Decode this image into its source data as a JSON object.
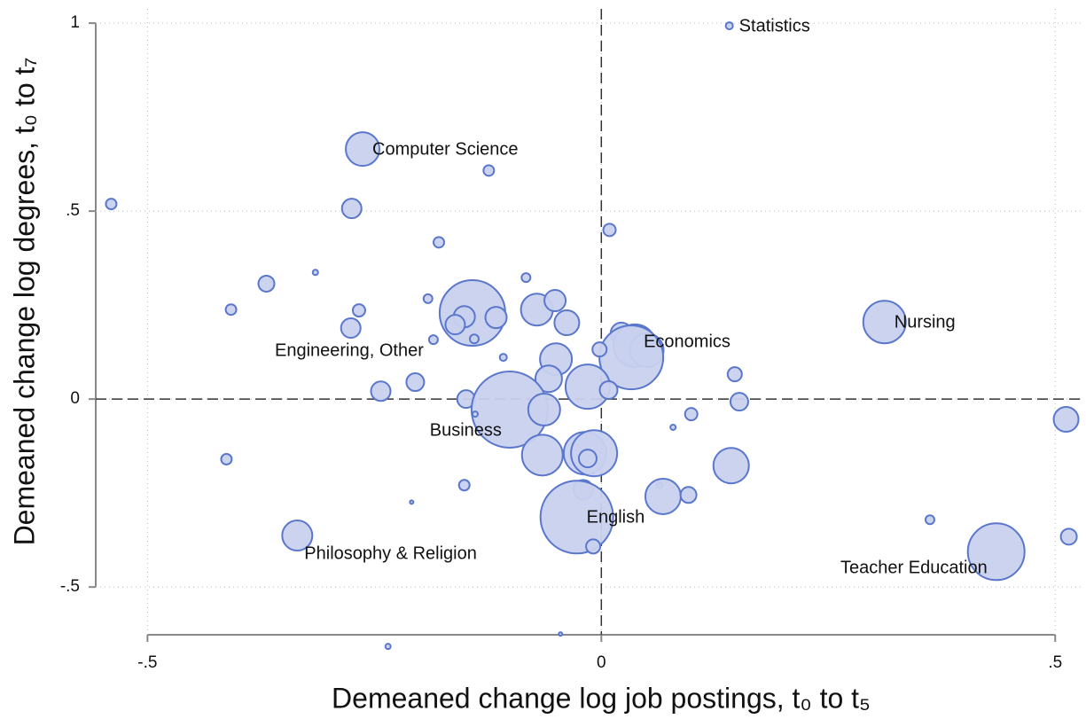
{
  "chart_data": {
    "type": "scatter",
    "xlabel": "Demeaned change log job postings, t₀ to t₅",
    "ylabel": "Demeaned change log degrees, t₀ to t₇",
    "xlim": [
      -0.557,
      0.531
    ],
    "ylim": [
      -0.627,
      1.038
    ],
    "xticks": [
      {
        "value": -0.5,
        "label": "-.5"
      },
      0,
      {
        "value": 0.5,
        "label": ".5"
      }
    ],
    "yticks": [
      {
        "value": -0.5,
        "label": "-.5"
      },
      0,
      {
        "value": 0.5,
        "label": ".5"
      },
      1
    ],
    "grid": true,
    "xline": 0,
    "yline": 0,
    "color": "#c8d1ee",
    "edge_color": "#5b77cc",
    "x": [
      0.141,
      -0.263,
      -0.124,
      -0.54,
      -0.275,
      0.009,
      -0.179,
      -0.315,
      -0.083,
      -0.369,
      -0.408,
      -0.267,
      -0.191,
      -0.142,
      -0.151,
      -0.116,
      -0.071,
      -0.051,
      -0.038,
      -0.161,
      -0.14,
      -0.276,
      -0.185,
      0.312,
      0.022,
      0.037,
      0.05,
      0.033,
      -0.002,
      -0.108,
      -0.05,
      -0.058,
      0.147,
      -0.205,
      -0.243,
      -0.149,
      -0.015,
      0.008,
      0.152,
      -0.101,
      -0.063,
      -0.139,
      0.099,
      0.079,
      0.512,
      -0.413,
      -0.065,
      -0.018,
      -0.008,
      -0.015,
      0.143,
      -0.151,
      -0.02,
      0.064,
      0.068,
      0.096,
      -0.209,
      -0.027,
      0.362,
      -0.335,
      0.515,
      -0.009,
      0.435,
      -0.235,
      -0.045
    ],
    "y": [
      0.993,
      0.665,
      0.608,
      0.519,
      0.507,
      0.45,
      0.417,
      0.337,
      0.323,
      0.307,
      0.238,
      0.236,
      0.267,
      0.229,
      0.219,
      0.217,
      0.238,
      0.262,
      0.203,
      0.198,
      0.16,
      0.189,
      0.158,
      0.205,
      0.175,
      0.142,
      0.13,
      0.111,
      0.132,
      0.111,
      0.106,
      0.054,
      0.066,
      0.045,
      0.021,
      0,
      0.033,
      0.024,
      -0.007,
      -0.028,
      -0.028,
      -0.04,
      -0.04,
      -0.075,
      -0.054,
      -0.16,
      -0.149,
      -0.144,
      -0.144,
      -0.158,
      -0.177,
      -0.229,
      -0.241,
      -0.229,
      -0.259,
      -0.255,
      -0.274,
      -0.314,
      -0.321,
      -0.363,
      -0.366,
      -0.392,
      -0.406,
      -0.658,
      -0.625
    ],
    "sizes": [
      16,
      361,
      36,
      36,
      121,
      49,
      36,
      9,
      25,
      81,
      36,
      49,
      25,
      1369,
      144,
      144,
      324,
      144,
      196,
      121,
      25,
      121,
      25,
      576,
      144,
      576,
      361,
      1296,
      64,
      16,
      324,
      225,
      64,
      100,
      121,
      100,
      625,
      100,
      100,
      1849,
      324,
      9,
      49,
      9,
      196,
      36,
      529,
      576,
      676,
      100,
      400,
      36,
      121,
      9,
      400,
      81,
      4,
      1681,
      25,
      289,
      81,
      64,
      1024,
      9,
      4
    ],
    "labels": [
      "Statistics",
      "Computer Science",
      null,
      null,
      null,
      null,
      null,
      null,
      null,
      null,
      null,
      null,
      null,
      null,
      null,
      null,
      null,
      null,
      null,
      null,
      null,
      null,
      "Engineering, Other",
      "Nursing",
      null,
      null,
      null,
      "Economics",
      null,
      null,
      null,
      null,
      null,
      null,
      null,
      null,
      null,
      null,
      null,
      "Business",
      null,
      null,
      null,
      null,
      null,
      null,
      null,
      null,
      null,
      null,
      null,
      null,
      null,
      null,
      null,
      null,
      null,
      "English",
      null,
      "Philosophy & Religion",
      null,
      null,
      "Teacher Education",
      null,
      null
    ]
  }
}
